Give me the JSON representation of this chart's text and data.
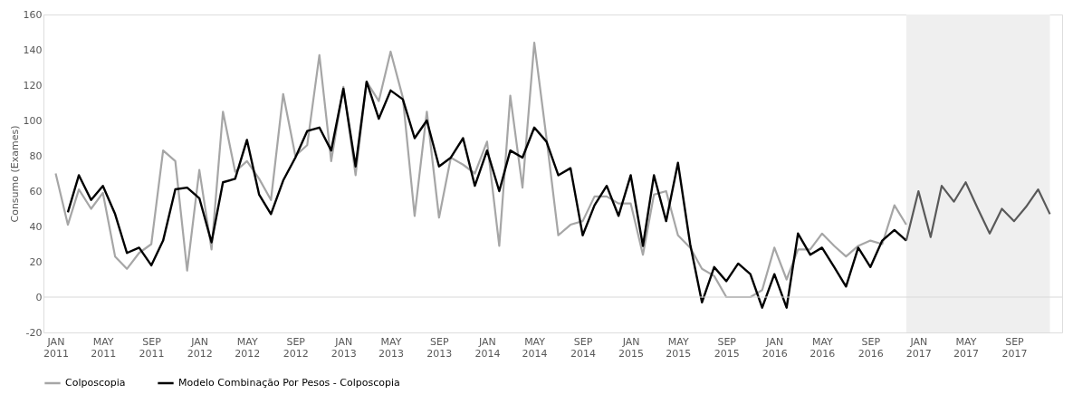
{
  "chart_data": {
    "type": "line",
    "ylabel": "Consumo (Exames)",
    "x": [
      "2011-01",
      "2011-02",
      "2011-03",
      "2011-04",
      "2011-05",
      "2011-06",
      "2011-07",
      "2011-08",
      "2011-09",
      "2011-10",
      "2011-11",
      "2011-12",
      "2012-01",
      "2012-02",
      "2012-03",
      "2012-04",
      "2012-05",
      "2012-06",
      "2012-07",
      "2012-08",
      "2012-09",
      "2012-10",
      "2012-11",
      "2012-12",
      "2013-01",
      "2013-02",
      "2013-03",
      "2013-04",
      "2013-05",
      "2013-06",
      "2013-07",
      "2013-08",
      "2013-09",
      "2013-10",
      "2013-11",
      "2013-12",
      "2014-01",
      "2014-02",
      "2014-03",
      "2014-04",
      "2014-05",
      "2014-06",
      "2014-07",
      "2014-08",
      "2014-09",
      "2014-10",
      "2014-11",
      "2014-12",
      "2015-01",
      "2015-02",
      "2015-03",
      "2015-04",
      "2015-05",
      "2015-06",
      "2015-07",
      "2015-08",
      "2015-09",
      "2015-10",
      "2015-11",
      "2015-12",
      "2016-01",
      "2016-02",
      "2016-03",
      "2016-04",
      "2016-05",
      "2016-06",
      "2016-07",
      "2016-08",
      "2016-09",
      "2016-10",
      "2016-11",
      "2016-12",
      "2017-01",
      "2017-02",
      "2017-03",
      "2017-04",
      "2017-05",
      "2017-06",
      "2017-07",
      "2017-08",
      "2017-09",
      "2017-10",
      "2017-11",
      "2017-12"
    ],
    "series": [
      {
        "name": "Colposcopia",
        "color": "#a6a6a6",
        "values": [
          70,
          41,
          61,
          50,
          59,
          23,
          16,
          25,
          30,
          83,
          77,
          15,
          72,
          27,
          105,
          71,
          77,
          67,
          55,
          115,
          80,
          86,
          137,
          77,
          119,
          69,
          122,
          111,
          139,
          113,
          46,
          105,
          45,
          79,
          75,
          70,
          88,
          29,
          114,
          62,
          144,
          90,
          35,
          41,
          43,
          57,
          57,
          53,
          53,
          24,
          58,
          60,
          35,
          28,
          16,
          12,
          0,
          0,
          0,
          4,
          28,
          10,
          27,
          27,
          36,
          29,
          23,
          29,
          32,
          30,
          52,
          41,
          null,
          null,
          null,
          null,
          null,
          null,
          null,
          null,
          null,
          null,
          null,
          null
        ]
      },
      {
        "name": "Modelo Combinação Por Pesos - Colposcopia",
        "color": "#000000",
        "values": [
          null,
          48,
          69,
          55,
          63,
          47,
          25,
          28,
          18,
          32,
          61,
          62,
          56,
          31,
          65,
          67,
          89,
          58,
          47,
          66,
          79,
          94,
          96,
          83,
          118,
          74,
          122,
          101,
          117,
          112,
          90,
          100,
          74,
          79,
          90,
          63,
          83,
          60,
          83,
          79,
          96,
          88,
          69,
          73,
          35,
          52,
          63,
          46,
          69,
          29,
          69,
          43,
          76,
          30,
          -3,
          17,
          9,
          19,
          13,
          -6,
          13,
          -6,
          36,
          24,
          28,
          17,
          6,
          28,
          17,
          32,
          38,
          32,
          null,
          null,
          null,
          null,
          null,
          null,
          null,
          null,
          null,
          null,
          null,
          null
        ]
      },
      {
        "color": "#595959",
        "values": [
          null,
          null,
          null,
          null,
          null,
          null,
          null,
          null,
          null,
          null,
          null,
          null,
          null,
          null,
          null,
          null,
          null,
          null,
          null,
          null,
          null,
          null,
          null,
          null,
          null,
          null,
          null,
          null,
          null,
          null,
          null,
          null,
          null,
          null,
          null,
          null,
          null,
          null,
          null,
          null,
          null,
          null,
          null,
          null,
          null,
          null,
          null,
          null,
          null,
          null,
          null,
          null,
          null,
          null,
          null,
          null,
          null,
          null,
          null,
          null,
          null,
          null,
          null,
          null,
          null,
          null,
          null,
          null,
          null,
          null,
          null,
          32,
          60,
          34,
          63,
          54,
          65,
          50,
          36,
          50,
          43,
          51,
          61,
          47
        ]
      }
    ],
    "xlim": [
      "2010-12",
      "2018-01"
    ],
    "xticks": [
      {
        "value": "2011-01",
        "label": "JAN 2011"
      },
      {
        "value": "2011-05",
        "label": "MAY 2011"
      },
      {
        "value": "2011-09",
        "label": "SEP 2011"
      },
      {
        "value": "2012-01",
        "label": "JAN 2012"
      },
      {
        "value": "2012-05",
        "label": "MAY 2012"
      },
      {
        "value": "2012-09",
        "label": "SEP 2012"
      },
      {
        "value": "2013-01",
        "label": "JAN 2013"
      },
      {
        "value": "2013-05",
        "label": "MAY 2013"
      },
      {
        "value": "2013-09",
        "label": "SEP 2013"
      },
      {
        "value": "2014-01",
        "label": "JAN 2014"
      },
      {
        "value": "2014-05",
        "label": "MAY 2014"
      },
      {
        "value": "2014-09",
        "label": "SEP 2014"
      },
      {
        "value": "2015-01",
        "label": "JAN 2015"
      },
      {
        "value": "2015-05",
        "label": "MAY 2015"
      },
      {
        "value": "2015-09",
        "label": "SEP 2015"
      },
      {
        "value": "2016-01",
        "label": "JAN 2016"
      },
      {
        "value": "2016-05",
        "label": "MAY 2016"
      },
      {
        "value": "2016-09",
        "label": "SEP 2016"
      },
      {
        "value": "2017-01",
        "label": "JAN 2017"
      },
      {
        "value": "2017-05",
        "label": "MAY 2017"
      },
      {
        "value": "2017-09",
        "label": "SEP 2017"
      }
    ],
    "ylim": [
      -20,
      160
    ],
    "yticks": [
      -20,
      0,
      20,
      40,
      60,
      80,
      100,
      120,
      140,
      160
    ],
    "bands": [
      {
        "axis": "x",
        "from": "2016-12",
        "to": "2017-12",
        "color": "#efefef"
      }
    ],
    "ref_lines": [
      {
        "axis": "y",
        "value": 0,
        "color": "#d9d9d9"
      }
    ],
    "grid": false,
    "legend": "bottom",
    "line_style": "solid",
    "marker": "none"
  }
}
